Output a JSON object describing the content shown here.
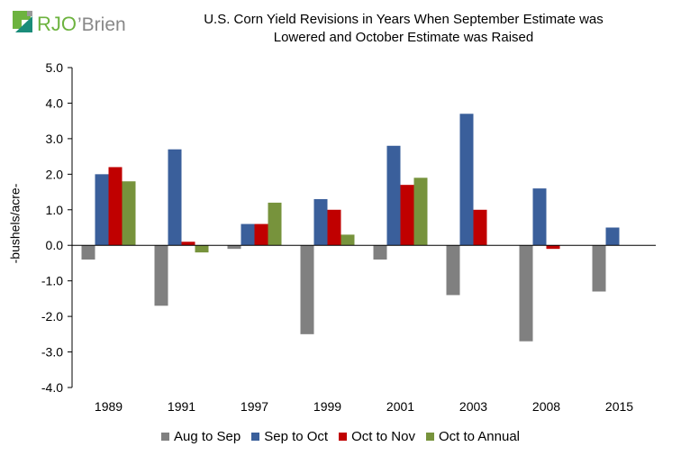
{
  "logo_text": "RJO'Brien",
  "chart_data": {
    "type": "bar",
    "title": "U.S. Corn Yield Revisions in Years When September Estimate was Lowered and October Estimate was Raised",
    "title_lines": [
      "U.S. Corn Yield Revisions in Years When September Estimate was",
      "Lowered and October Estimate was Raised"
    ],
    "xlabel": "",
    "ylabel": "-bushels/acre-",
    "ylim": [
      -4.0,
      5.0
    ],
    "yticks": [
      "5.0",
      "4.0",
      "3.0",
      "2.0",
      "1.0",
      "0.0",
      "-1.0",
      "-2.0",
      "-3.0",
      "-4.0"
    ],
    "categories": [
      "1989",
      "1991",
      "1997",
      "1999",
      "2001",
      "2003",
      "2008",
      "2015"
    ],
    "series": [
      {
        "name": "Aug to Sep",
        "color": "#808080",
        "values": [
          -0.4,
          -1.7,
          -0.1,
          -2.5,
          -0.4,
          -1.4,
          -2.7,
          -1.3
        ]
      },
      {
        "name": "Sep to Oct",
        "color": "#3a5f9b",
        "values": [
          2.0,
          2.7,
          0.6,
          1.3,
          2.8,
          3.7,
          1.6,
          0.5
        ]
      },
      {
        "name": "Oct to Nov",
        "color": "#c00000",
        "values": [
          2.2,
          0.1,
          0.6,
          1.0,
          1.7,
          1.0,
          -0.1,
          null
        ]
      },
      {
        "name": "Oct to Annual",
        "color": "#77933c",
        "values": [
          1.8,
          -0.2,
          1.2,
          0.3,
          1.9,
          null,
          null,
          null
        ]
      }
    ],
    "legend_position": "bottom",
    "grid": false
  }
}
